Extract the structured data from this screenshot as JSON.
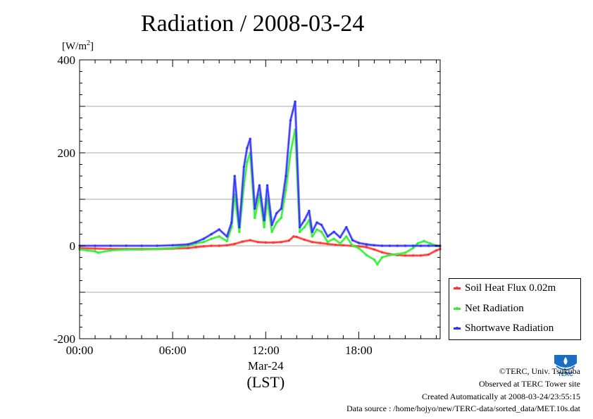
{
  "chart_data": {
    "type": "line",
    "title": "Radiation / 2008-03-24",
    "ylabel_unit": "[W/m",
    "ylabel_unit_sup": "2",
    "ylabel_unit_end": "]",
    "xlabel": "(LST)",
    "ylim": [
      -200,
      400
    ],
    "xlim": [
      0,
      23.25
    ],
    "y_ticks": [
      400,
      200,
      0,
      -200
    ],
    "y_tick_labels": [
      "400",
      "200",
      "0",
      "-200"
    ],
    "x_ticks": [
      0,
      6,
      12,
      18
    ],
    "x_tick_labels": [
      "00:00",
      "06:00",
      "12:00",
      "18:00"
    ],
    "date_label": "Mar-24",
    "grid": true,
    "legend_position": "bottom-right outside",
    "series": [
      {
        "name": "Soil Heat Flux 0.02m",
        "color": "#ff3333",
        "x": [
          0,
          1,
          2,
          3,
          4,
          5,
          6,
          7,
          7.5,
          8,
          8.5,
          9,
          9.5,
          10,
          10.5,
          11,
          11.5,
          12,
          12.5,
          13,
          13.5,
          13.8,
          14,
          14.5,
          15,
          15.5,
          16,
          16.5,
          17,
          17.5,
          18,
          18.5,
          19,
          19.5,
          20,
          20.5,
          21,
          21.5,
          22,
          22.5,
          23,
          23.25
        ],
        "y": [
          -5,
          -6,
          -7,
          -7,
          -7,
          -7,
          -6,
          -5,
          -3,
          -1,
          0,
          0,
          1,
          4,
          9,
          12,
          8,
          7,
          7,
          8,
          11,
          20,
          19,
          13,
          8,
          6,
          4,
          2,
          1,
          0,
          -1,
          -3,
          -8,
          -14,
          -18,
          -20,
          -21,
          -21,
          -21,
          -19,
          -10,
          -7
        ]
      },
      {
        "name": "Net Radiation",
        "color": "#33ee33",
        "x": [
          0,
          0.5,
          1,
          1.2,
          2,
          3,
          4,
          5,
          6,
          7,
          7.5,
          8,
          8.5,
          9,
          9.5,
          9.8,
          10,
          10.3,
          10.6,
          10.8,
          11,
          11.3,
          11.6,
          11.9,
          12.1,
          12.4,
          12.7,
          13,
          13.3,
          13.6,
          13.9,
          14.2,
          14.5,
          14.8,
          15,
          15.3,
          15.6,
          16,
          16.4,
          16.8,
          17.2,
          17.6,
          18,
          18.5,
          19,
          19.2,
          19.5,
          20,
          20.5,
          21,
          21.5,
          21.8,
          22.2,
          22.6,
          23,
          23.25
        ],
        "y": [
          -8,
          -10,
          -12,
          -15,
          -10,
          -8,
          -8,
          -7,
          -5,
          0,
          5,
          8,
          15,
          20,
          10,
          40,
          110,
          30,
          130,
          180,
          200,
          60,
          110,
          40,
          100,
          30,
          50,
          60,
          120,
          200,
          250,
          30,
          40,
          55,
          20,
          35,
          30,
          8,
          15,
          5,
          20,
          0,
          -5,
          -20,
          -30,
          -40,
          -25,
          -20,
          -18,
          -15,
          -5,
          5,
          10,
          5,
          0,
          -2
        ]
      },
      {
        "name": "Shortwave Radiation",
        "color": "#3333ff",
        "x": [
          0,
          1,
          2,
          3,
          4,
          5,
          6,
          7,
          7.5,
          8,
          8.5,
          9,
          9.5,
          9.8,
          10,
          10.3,
          10.6,
          10.8,
          11,
          11.3,
          11.6,
          11.9,
          12.1,
          12.4,
          12.7,
          13,
          13.3,
          13.6,
          13.9,
          14.2,
          14.5,
          14.8,
          15,
          15.3,
          15.6,
          16,
          16.4,
          16.8,
          17.2,
          17.6,
          18,
          18.5,
          19,
          19.5,
          20,
          20.5,
          21,
          21.5,
          22,
          22.5,
          23,
          23.25
        ],
        "y": [
          0,
          0,
          0,
          0,
          0,
          0,
          1,
          3,
          8,
          15,
          25,
          35,
          20,
          50,
          150,
          40,
          170,
          210,
          230,
          80,
          130,
          55,
          130,
          45,
          70,
          80,
          150,
          270,
          310,
          40,
          55,
          75,
          30,
          50,
          45,
          20,
          30,
          18,
          40,
          12,
          6,
          3,
          1,
          0,
          0,
          0,
          0,
          0,
          0,
          0,
          0,
          0
        ]
      }
    ]
  },
  "footer": {
    "copyright": "©TERC, Univ. Tsukuba",
    "observed": "Observed at TERC Tower site",
    "created": "Created Automatically at 2008-03-24/23:55:15",
    "source": "Data source : /home/hojyo/new/TERC-data/sorted_data/MET.10s.dat"
  },
  "logo": {
    "text": "TERC",
    "color": "#1a6fc4"
  }
}
